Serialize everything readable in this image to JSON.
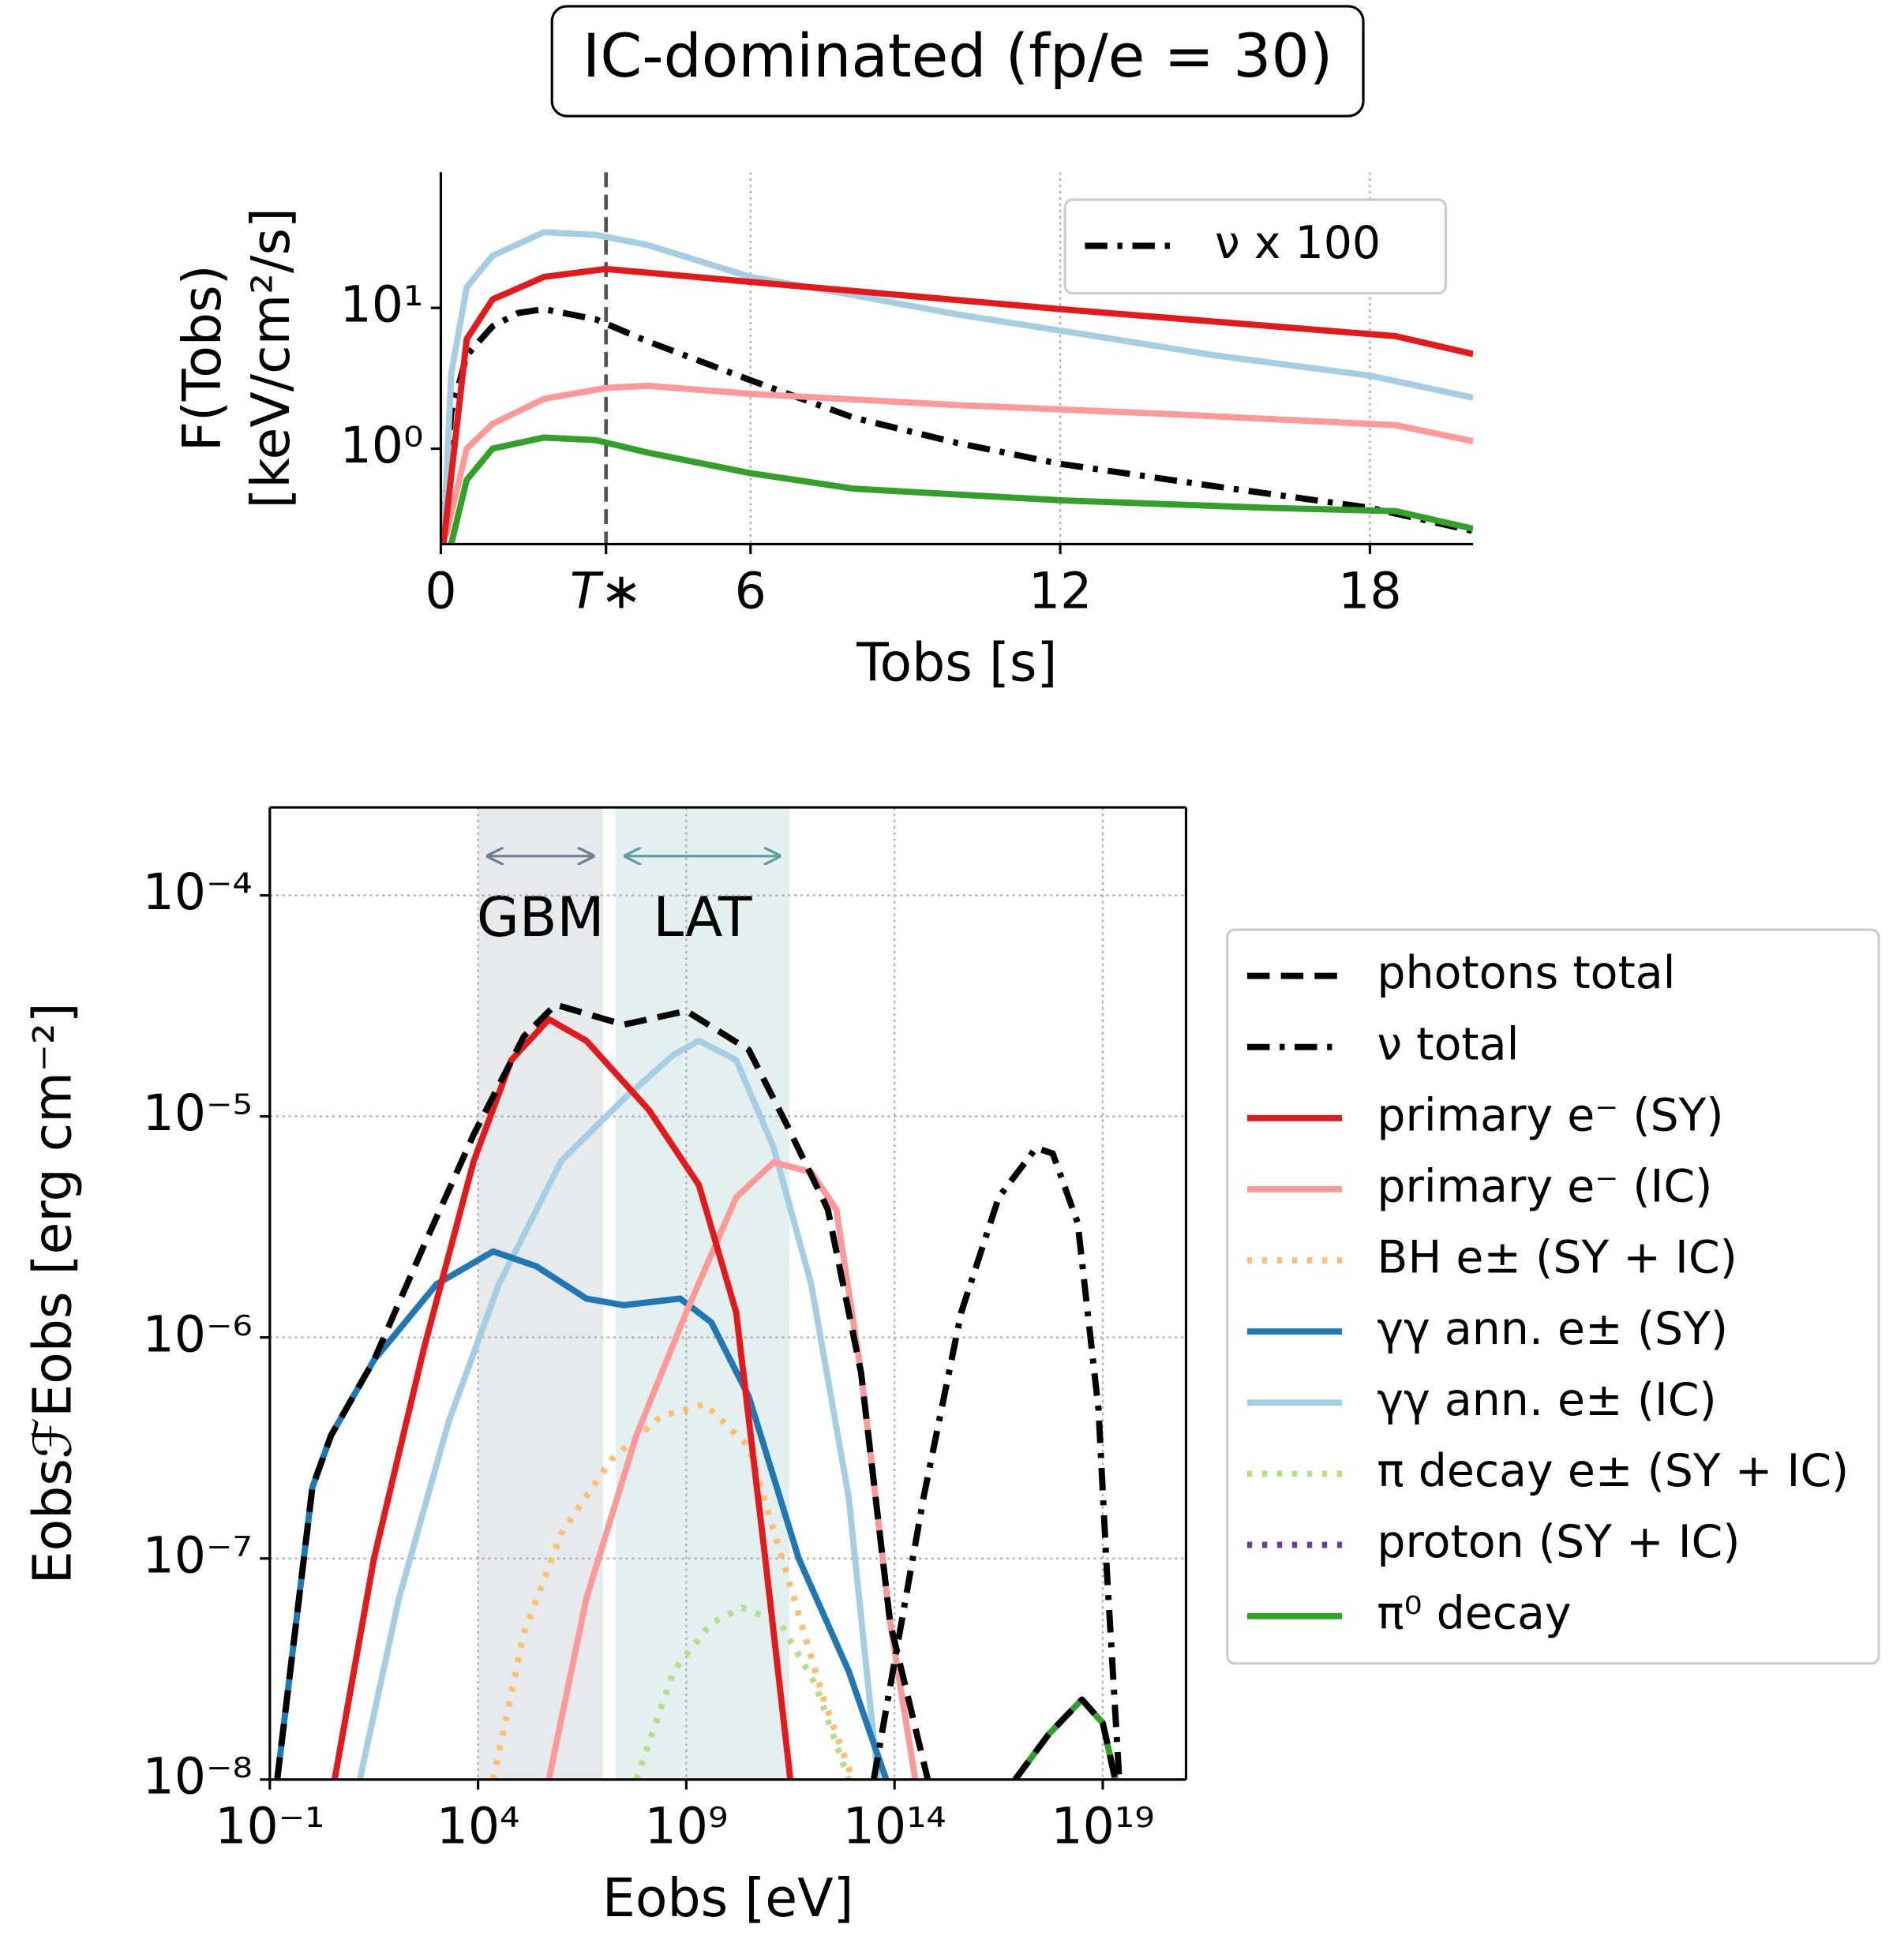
{
  "chart_data": [
    {
      "type": "line",
      "title": "IC-dominated (fp/e = 30)",
      "xlabel": "Tobs [s]",
      "ylabel": [
        "F(Tobs)",
        "[keV/cm²/s]"
      ],
      "xscale": "linear",
      "yscale": "log",
      "xlim": [
        0,
        20
      ],
      "ylim": [
        0.21,
        92
      ],
      "xticks": [
        0,
        {
          "value": 3.2,
          "label": "T∗"
        },
        6,
        12,
        18
      ],
      "yticks": [
        {
          "value": 1,
          "label": "10⁰"
        },
        {
          "value": 10,
          "label": "10¹"
        }
      ],
      "xgrid": true,
      "ygrid": false,
      "legend": "upper right",
      "series": [
        {
          "color": "#e31a1c",
          "style": "solid",
          "x": [
            0.05,
            0.5,
            1,
            2,
            3.2,
            6,
            12,
            18.5,
            20
          ],
          "values": [
            0.21,
            6.0,
            11.5,
            16.6,
            18.9,
            15.3,
            9.8,
            6.3,
            4.7
          ]
        },
        {
          "color": "#a6cee3",
          "style": "solid",
          "x": [
            0.05,
            0.2,
            0.5,
            1,
            2,
            3,
            4,
            6,
            8,
            10,
            12,
            15,
            18,
            20
          ],
          "values": [
            0.21,
            3.4,
            14,
            23.5,
            34.5,
            33,
            28,
            16.6,
            12.3,
            9,
            6.9,
            4.6,
            3.3,
            2.3
          ]
        },
        {
          "color": "#fb9a99",
          "style": "solid",
          "x": [
            0.1,
            0.5,
            1,
            2,
            3.2,
            4,
            6,
            10,
            14,
            18.5,
            20
          ],
          "values": [
            0.24,
            1,
            1.5,
            2.26,
            2.7,
            2.8,
            2.45,
            2.04,
            1.77,
            1.47,
            1.13
          ]
        },
        {
          "color": "#33a02c",
          "style": "solid",
          "x": [
            0.2,
            0.5,
            1,
            2,
            3,
            4,
            6,
            8,
            12,
            16,
            18.5,
            20
          ],
          "values": [
            0.21,
            0.6,
            1,
            1.2,
            1.15,
            0.94,
            0.67,
            0.52,
            0.43,
            0.38,
            0.36,
            0.27
          ]
        },
        {
          "name": "ν x 100",
          "color": "#000000",
          "style": "dashdot",
          "x": [
            0.05,
            0.2,
            0.5,
            1,
            1.5,
            2,
            3,
            4,
            6,
            8,
            10,
            12,
            15,
            18,
            20
          ],
          "values": [
            0.29,
            1.8,
            4.6,
            7.4,
            9.2,
            9.8,
            8.3,
            5.8,
            3.06,
            1.66,
            1.1,
            0.78,
            0.54,
            0.38,
            0.26
          ]
        }
      ]
    },
    {
      "type": "line",
      "xlabel": "Eobs [eV]",
      "ylabel": "EobsℱEobs [erg cm⁻²]",
      "xscale": "log",
      "yscale": "log",
      "xlim": [
        0.1,
        1e+21
      ],
      "ylim": [
        1e-08,
        0.00025
      ],
      "xticks": [
        {
          "value": 0.1,
          "label": "10⁻¹"
        },
        {
          "value": 10000.0,
          "label": "10⁴"
        },
        {
          "value": 1000000000.0,
          "label": "10⁹"
        },
        {
          "value": 100000000000000.0,
          "label": "10¹⁴"
        },
        {
          "value": 1e+19,
          "label": "10¹⁹"
        }
      ],
      "yticks": [
        {
          "value": 1e-08,
          "label": "10⁻⁸"
        },
        {
          "value": 1e-07,
          "label": "10⁻⁷"
        },
        {
          "value": 1e-06,
          "label": "10⁻⁶"
        },
        {
          "value": 1e-05,
          "label": "10⁻⁵"
        },
        {
          "value": 0.0001,
          "label": "10⁻⁴"
        }
      ],
      "xgrid": true,
      "ygrid": true,
      "legend": "outside right",
      "bands": [
        {
          "label": "GBM",
          "range": [
            10000.0,
            10000000.0
          ],
          "color": "#708090"
        },
        {
          "label": "LAT",
          "range": [
            20000000.0,
            300000000000.0
          ],
          "color": "#5f9ea0"
        }
      ],
      "series": [
        {
          "name": "photons total",
          "color": "#000000",
          "style": "dashed",
          "x": [
            0.15,
            1.05,
            2.95,
            31.6,
            500,
            7900.0,
            126000.0,
            720000.0,
            31600000.0,
            1000000000.0,
            31600000000.0,
            250000000000.0,
            2500000000000.0,
            15800000000000.0,
            79000000000000.0,
            630000000000000.0,
            1e+16,
            7.9e+16,
            5e+17,
            3.16e+18,
            1e+19,
            2e+19
          ],
          "values": [
            1e-08,
            2.1e-07,
            3.6e-07,
            7.9e-07,
            2.6e-06,
            8.3e-06,
            2.3e-05,
            3.2e-05,
            2.6e-05,
            3e-05,
            2e-05,
            9.3e-06,
            3.8e-06,
            6.9e-07,
            5.1e-08,
            1e-08,
            null,
            1e-08,
            1.6e-08,
            2.3e-08,
            1.8e-08,
            1e-08
          ]
        },
        {
          "name": "ν total",
          "color": "#000000",
          "style": "dashdot",
          "x": [
            31600000000000.0,
            500000000000000.0,
            4000000000000000.0,
            3.16e+16,
            2.5e+17,
            6.3e+17,
            2.5e+18,
            7.9e+18,
            1.26e+19,
            2.5e+19
          ],
          "values": [
            1e-08,
            1.9e-07,
            1.3e-06,
            4.3e-06,
            7.2e-06,
            6.8e-06,
            3.3e-06,
            4.7e-07,
            8.7e-08,
            1e-08
          ]
        },
        {
          "name": "primary e⁻ (SY)",
          "color": "#e31a1c",
          "style": "solid",
          "x": [
            3.6,
            31.6,
            500,
            7900.0,
            63000.0,
            500000.0,
            4000000.0,
            126000000.0,
            2000000000.0,
            15800000000.0,
            79000000000.0,
            316000000000.0
          ],
          "values": [
            1e-08,
            1e-07,
            8.9e-07,
            6.3e-06,
            1.8e-05,
            2.75e-05,
            2.2e-05,
            1.07e-05,
            4.9e-06,
            1.3e-06,
            1e-07,
            1e-08
          ]
        },
        {
          "name": "primary e⁻ (IC)",
          "color": "#fb9a99",
          "style": "solid",
          "x": [
            500000.0,
            4000000.0,
            63000000.0,
            1000000000.0,
            15800000000.0,
            126000000000.0,
            1000000000000.0,
            4000000000000.0,
            15800000000000.0,
            79000000000000.0,
            316000000000000.0
          ],
          "values": [
            1e-08,
            6.6e-08,
            3.6e-07,
            1.3e-06,
            4.3e-06,
            6.2e-06,
            5.6e-06,
            3.8e-06,
            6.9e-07,
            5.1e-08,
            1e-08
          ]
        },
        {
          "name": "BH e± (SY + IC)",
          "color": "#fdbf6f",
          "style": "dotted",
          "x": [
            23000.0,
            126000.0,
            1000000.0,
            15800000.0,
            250000000.0,
            2800000000.0,
            31600000000.0,
            250000000000.0,
            2000000000000.0,
            10000000000000.0
          ],
          "values": [
            1e-08,
            4.6e-08,
            1.3e-07,
            2.8e-07,
            4.4e-07,
            5e-07,
            3.2e-07,
            8.7e-08,
            2.3e-08,
            1e-08
          ]
        },
        {
          "name": "γγ ann. e± (SY)",
          "color": "#1f78b4",
          "style": "solid",
          "x": [
            0.15,
            1.05,
            2.95,
            31.6,
            1000.0,
            23000.0,
            250000.0,
            4000000.0,
            31600000.0,
            710000000.0,
            4000000000.0,
            31600000000.0,
            500000000000.0,
            7900000000000.0,
            63000000000000.0
          ],
          "values": [
            1e-08,
            2.1e-07,
            3.6e-07,
            7.9e-07,
            1.74e-06,
            2.45e-06,
            2.1e-06,
            1.5e-06,
            1.4e-06,
            1.5e-06,
            1.17e-06,
            5.4e-07,
            1e-07,
            3.1e-08,
            1e-08
          ]
        },
        {
          "name": "γγ ann. e± (IC)",
          "color": "#a6cee3",
          "style": "solid",
          "x": [
            14.5,
            126,
            2000.0,
            31600.0,
            1000000.0,
            31600000.0,
            500000000.0,
            2000000000.0,
            15800000000.0,
            126000000000.0,
            1000000000000.0,
            7900000000000.0,
            40000000000000.0
          ],
          "values": [
            1e-08,
            6.6e-08,
            4.2e-07,
            1.74e-06,
            6.3e-06,
            1.2e-05,
            1.9e-05,
            2.2e-05,
            1.8e-05,
            7.2e-06,
            1.74e-06,
            1.9e-07,
            1e-08
          ]
        },
        {
          "name": "π decay e± (SY + IC)",
          "color": "#b2df8a",
          "style": "dotted",
          "x": [
            63000000.0,
            500000000.0,
            4000000000.0,
            22000000000.0,
            180000000000.0,
            1260000000000.0,
            7900000000000.0
          ],
          "values": [
            1e-08,
            3.1e-08,
            5.1e-08,
            6e-08,
            5.1e-08,
            2.7e-08,
            1e-08
          ]
        },
        {
          "name": "proton (SY + IC)",
          "color": "#6a3d9a",
          "style": "dotted",
          "x": [],
          "values": []
        },
        {
          "name": "π⁰ decay",
          "color": "#33a02c",
          "style": "solid",
          "x": [
            7.9e+16,
            5e+17,
            3.16e+18,
            1e+19,
            2e+19
          ],
          "values": [
            1e-08,
            1.6e-08,
            2.3e-08,
            1.8e-08,
            1e-08
          ]
        }
      ]
    }
  ]
}
